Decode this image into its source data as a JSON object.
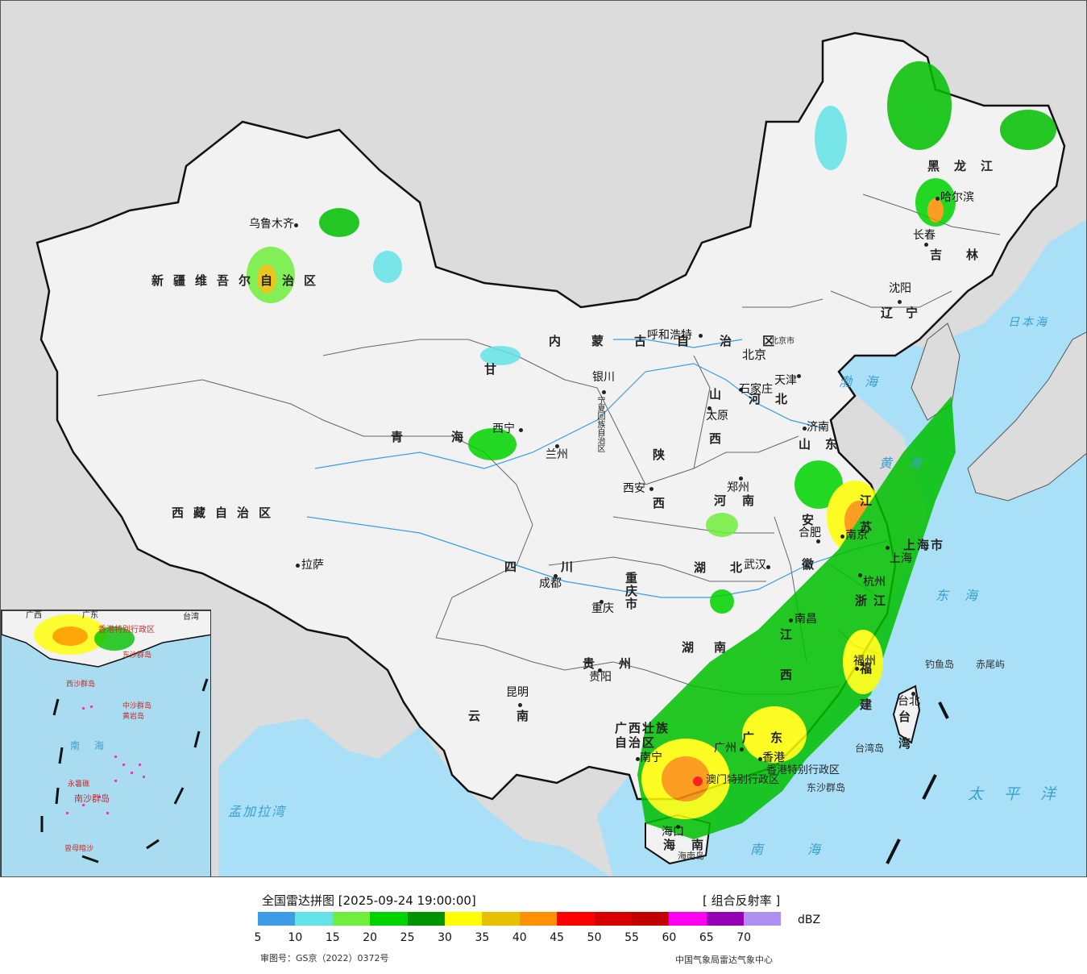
{
  "map": {
    "provinces": [
      {
        "name": "新疆维吾尔自治区"
      },
      {
        "name": "西藏自治区"
      },
      {
        "name": "青海"
      },
      {
        "name": "甘"
      },
      {
        "name": "四川"
      },
      {
        "name": "云南"
      },
      {
        "name": "内蒙古自治区"
      },
      {
        "name": "黑龙江"
      },
      {
        "name": "吉林"
      },
      {
        "name": "辽宁"
      },
      {
        "name": "河北"
      },
      {
        "name": "山西"
      },
      {
        "name": "陕西"
      },
      {
        "name": "河南"
      },
      {
        "name": "山东"
      },
      {
        "name": "江苏"
      },
      {
        "name": "安徽"
      },
      {
        "name": "湖北"
      },
      {
        "name": "湖南"
      },
      {
        "name": "江西"
      },
      {
        "name": "浙江"
      },
      {
        "name": "福建"
      },
      {
        "name": "广东"
      },
      {
        "name": "广西壮族自治区"
      },
      {
        "name": "贵州"
      },
      {
        "name": "重庆市"
      },
      {
        "name": "海南"
      },
      {
        "name": "台湾"
      },
      {
        "name": "上海市"
      },
      {
        "name": "宁夏回族自治区"
      },
      {
        "name": "香港特别行政区"
      },
      {
        "name": "澳门特别行政区"
      }
    ],
    "cities": [
      {
        "name": "乌鲁木齐"
      },
      {
        "name": "拉萨"
      },
      {
        "name": "西宁"
      },
      {
        "name": "兰州"
      },
      {
        "name": "成都"
      },
      {
        "name": "昆明"
      },
      {
        "name": "呼和浩特"
      },
      {
        "name": "哈尔滨"
      },
      {
        "name": "长春"
      },
      {
        "name": "沈阳"
      },
      {
        "name": "北京"
      },
      {
        "name": "北京市"
      },
      {
        "name": "天津"
      },
      {
        "name": "石家庄"
      },
      {
        "name": "太原"
      },
      {
        "name": "银川"
      },
      {
        "name": "西安"
      },
      {
        "name": "郑州"
      },
      {
        "name": "济南"
      },
      {
        "name": "合肥"
      },
      {
        "name": "南京"
      },
      {
        "name": "上海"
      },
      {
        "name": "杭州"
      },
      {
        "name": "武汉"
      },
      {
        "name": "南昌"
      },
      {
        "name": "福州"
      },
      {
        "name": "台北"
      },
      {
        "name": "重庆"
      },
      {
        "name": "贵阳"
      },
      {
        "name": "南宁"
      },
      {
        "name": "广州"
      },
      {
        "name": "香港"
      },
      {
        "name": "海口"
      }
    ],
    "seas": [
      {
        "name": "日本海"
      },
      {
        "name": "渤海"
      },
      {
        "name": "黄海"
      },
      {
        "name": "东海"
      },
      {
        "name": "太平洋"
      },
      {
        "name": "南海"
      },
      {
        "name": "孟加拉湾"
      }
    ],
    "islands": [
      {
        "name": "钓鱼岛"
      },
      {
        "name": "赤尾屿"
      },
      {
        "name": "台湾岛"
      },
      {
        "name": "东沙群岛"
      },
      {
        "name": "海南岛"
      }
    ]
  },
  "inset": {
    "labels": [
      {
        "name": "广西"
      },
      {
        "name": "广东"
      },
      {
        "name": "台湾"
      },
      {
        "name": "香港特别行政区"
      },
      {
        "name": "东沙群岛"
      },
      {
        "name": "西沙群岛"
      },
      {
        "name": "中沙群岛"
      },
      {
        "name": "黄岩岛"
      },
      {
        "name": "南海"
      },
      {
        "name": "永暑礁"
      },
      {
        "name": "南沙群岛"
      },
      {
        "name": "曾母暗沙"
      }
    ]
  },
  "legend": {
    "title": "全国雷达拼图 [2025-09-24 19:00:00]",
    "product": "[ 组合反射率 ]",
    "unit": "dBZ",
    "ticks": [
      "5",
      "10",
      "15",
      "20",
      "25",
      "30",
      "35",
      "40",
      "45",
      "50",
      "55",
      "60",
      "65",
      "70"
    ],
    "colors": [
      "#3d9ce8",
      "#63e3e8",
      "#6fef3c",
      "#00d400",
      "#009300",
      "#ffff00",
      "#e7c000",
      "#ff9000",
      "#ff0000",
      "#d60000",
      "#c00000",
      "#ff00f0",
      "#9600b4",
      "#ad90f0"
    ],
    "approval_number": "审图号：GS京（2022）0372号",
    "source": "中国气象局雷达气象中心"
  }
}
